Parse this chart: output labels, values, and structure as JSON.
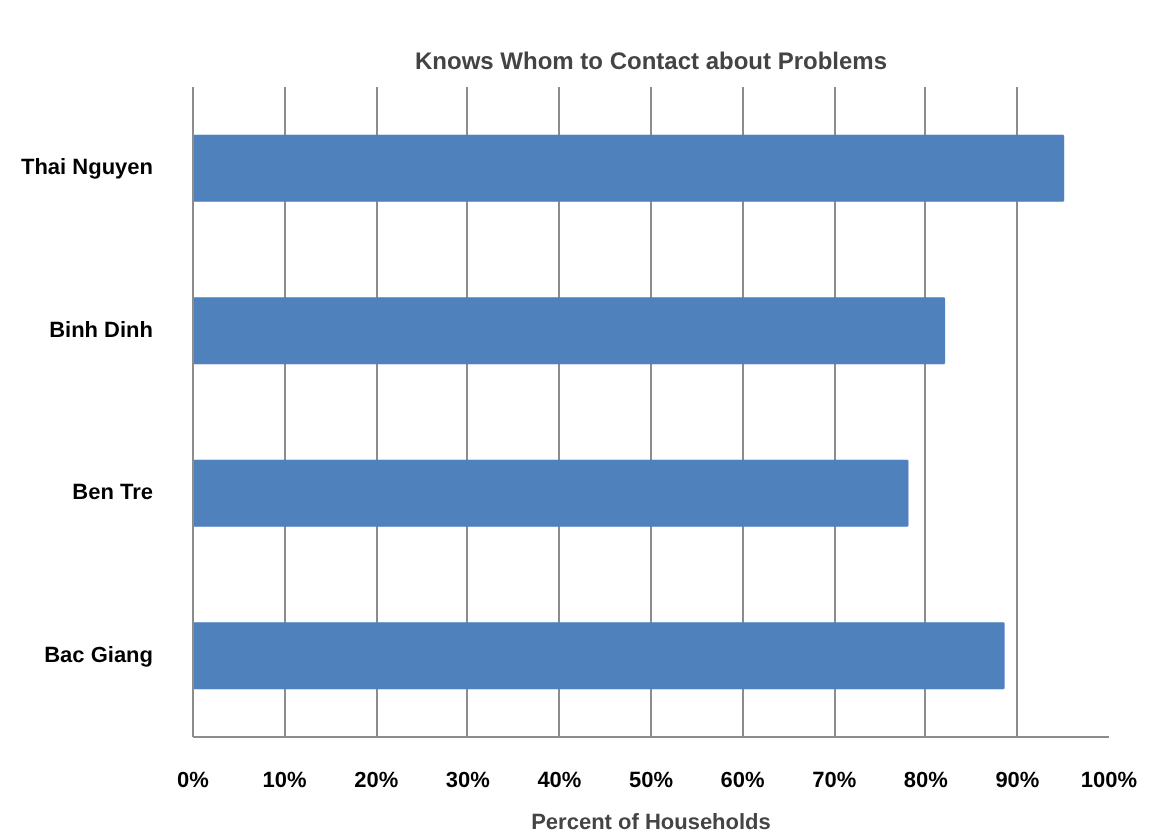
{
  "chart_data": {
    "type": "bar",
    "orientation": "horizontal",
    "title": "Knows Whom to Contact about Problems",
    "xlabel": "Percent of Households",
    "categories": [
      "Thai Nguyen",
      "Binh Dinh",
      "Ben Tre",
      "Bac Giang"
    ],
    "values": [
      95,
      82,
      78,
      88.5
    ],
    "color": "#4f81bd",
    "xlim": [
      0,
      100
    ],
    "xticks": [
      {
        "value": 0,
        "label": "0%"
      },
      {
        "value": 10,
        "label": "10%"
      },
      {
        "value": 20,
        "label": "20%"
      },
      {
        "value": 30,
        "label": "30%"
      },
      {
        "value": 40,
        "label": "40%"
      },
      {
        "value": 50,
        "label": "50%"
      },
      {
        "value": 60,
        "label": "60%"
      },
      {
        "value": 70,
        "label": "70%"
      },
      {
        "value": 80,
        "label": "80%"
      },
      {
        "value": 90,
        "label": "90%"
      },
      {
        "value": 100,
        "label": "100%"
      }
    ],
    "grid": "x"
  }
}
